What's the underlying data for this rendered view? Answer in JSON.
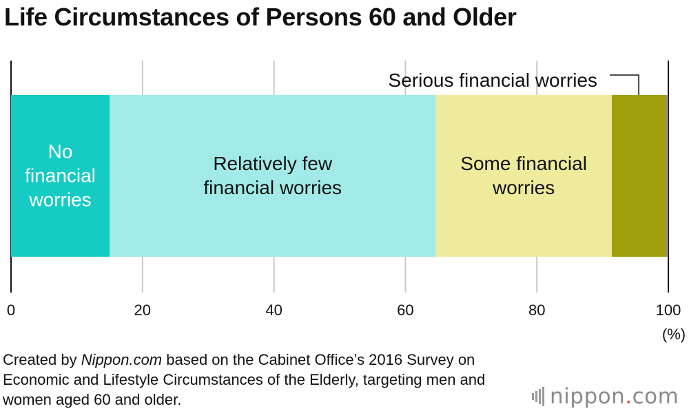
{
  "chart_data": {
    "type": "bar",
    "orientation": "horizontal-stacked-100",
    "title": "Life Circumstances of Persons 60 and Older",
    "xlim": [
      0,
      100
    ],
    "xticks": [
      "0",
      "20",
      "40",
      "60",
      "80",
      "100"
    ],
    "xunit": "(%)",
    "grid": true,
    "series": [
      {
        "name": "No financial worries",
        "lines": [
          "No",
          "financial",
          "worries"
        ],
        "value": 15.0,
        "color": "#16cbc3",
        "text_color": "#ffffff"
      },
      {
        "name": "Relatively few financial worries",
        "lines": [
          "Relatively few",
          "financial worries"
        ],
        "value": 49.6,
        "color": "#a1eae7",
        "text_color": "#111111"
      },
      {
        "name": "Some financial worries",
        "lines": [
          "Some financial",
          "worries"
        ],
        "value": 26.8,
        "color": "#eeeb9c",
        "text_color": "#111111"
      },
      {
        "name": "Serious financial worries",
        "lines": [],
        "value": 8.2,
        "color": "#a19e0c",
        "text_color": "#111111",
        "callout": "Serious financial worries"
      },
      {
        "name": "",
        "lines": [],
        "value": 0.4,
        "color": "#8a8a8a",
        "text_color": "#111111"
      }
    ]
  },
  "source": {
    "prefix": "Created by ",
    "italic": "Nippon.com",
    "suffix": " based on the Cabinet Office’s 2016 Survey on Economic and Lifestyle Circumstances of the Elderly, targeting men and women aged 60 and older."
  },
  "logo": {
    "name": "nippon",
    "dot": ".",
    "tld": "com",
    "accent": "#d64538"
  }
}
